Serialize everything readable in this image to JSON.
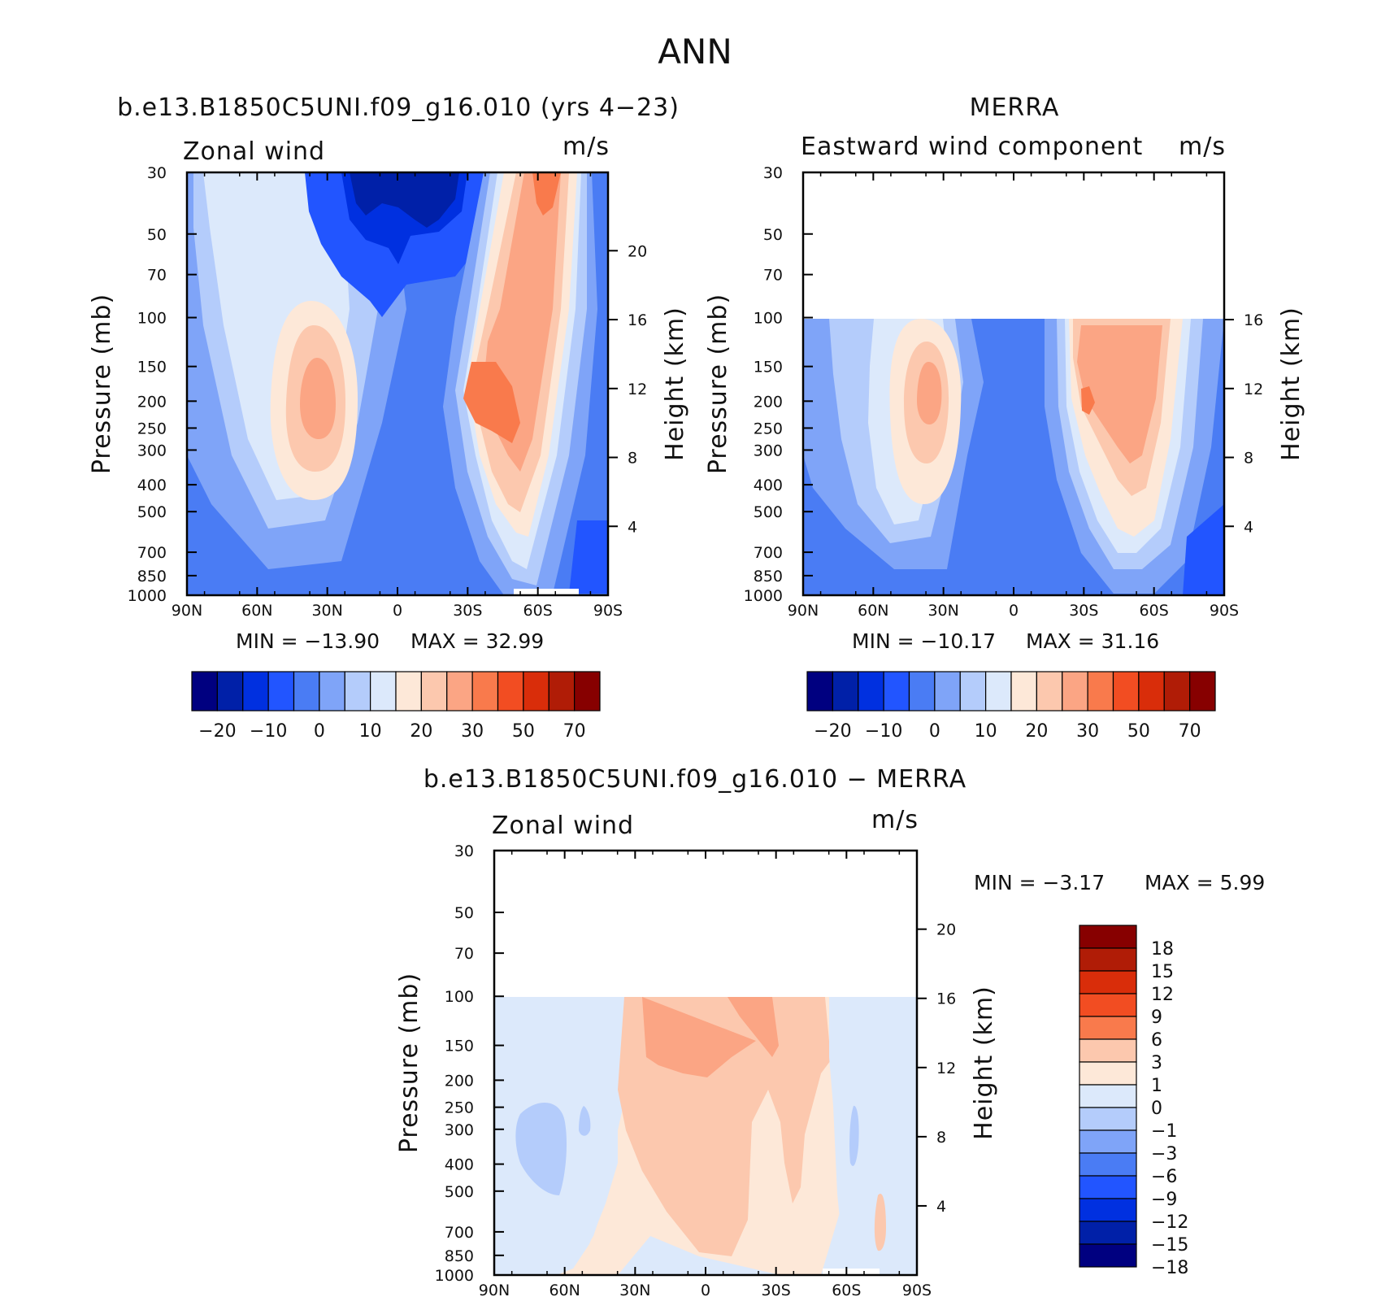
{
  "title": "ANN",
  "chart_data": [
    {
      "type": "contour",
      "id": "model",
      "title": "b.e13.B1850C5UNI.f09_g16.010 (yrs 4−23)",
      "left_label": "Zonal wind",
      "units": "m/s",
      "xlabel": "",
      "ylabel": "Pressure (mb)",
      "ylabel_right": "Height (km)",
      "x_ticks": [
        "90N",
        "60N",
        "30N",
        "0",
        "30S",
        "60S",
        "90S"
      ],
      "pressure_ticks": [
        30,
        50,
        70,
        100,
        150,
        200,
        250,
        300,
        400,
        500,
        700,
        850,
        1000
      ],
      "height_ticks": [
        4,
        8,
        12,
        16,
        20
      ],
      "data_top_mb": 30,
      "min_label": "MIN = −13.90",
      "max_label": "MAX = 32.99",
      "levels": [
        -25,
        -20,
        -15,
        -10,
        -5,
        0,
        5,
        10,
        15,
        20,
        25,
        30,
        40,
        50,
        60,
        70
      ],
      "colorbar_labels": [
        "−20",
        "−10",
        "0",
        "10",
        "20",
        "30",
        "50",
        "70"
      ]
    },
    {
      "type": "contour",
      "id": "obs",
      "title": "MERRA",
      "left_label": "Eastward wind component",
      "units": "m/s",
      "xlabel": "",
      "ylabel": "Pressure (mb)",
      "ylabel_right": "Height (km)",
      "x_ticks": [
        "90N",
        "60N",
        "30N",
        "0",
        "30S",
        "60S",
        "90S"
      ],
      "pressure_ticks": [
        30,
        50,
        70,
        100,
        150,
        200,
        250,
        300,
        400,
        500,
        700,
        850,
        1000
      ],
      "height_ticks": [
        4,
        8,
        12,
        16
      ],
      "data_top_mb": 100,
      "min_label": "MIN = −10.17",
      "max_label": "MAX = 31.16",
      "levels": [
        -25,
        -20,
        -15,
        -10,
        -5,
        0,
        5,
        10,
        15,
        20,
        25,
        30,
        40,
        50,
        60,
        70
      ],
      "colorbar_labels": [
        "−20",
        "−10",
        "0",
        "10",
        "20",
        "30",
        "50",
        "70"
      ]
    },
    {
      "type": "contour",
      "id": "diff",
      "title": "b.e13.B1850C5UNI.f09_g16.010 − MERRA",
      "left_label": "Zonal wind",
      "units": "m/s",
      "xlabel": "",
      "ylabel": "Pressure (mb)",
      "ylabel_right": "Height (km)",
      "x_ticks": [
        "90N",
        "60N",
        "30N",
        "0",
        "30S",
        "60S",
        "90S"
      ],
      "pressure_ticks": [
        30,
        50,
        70,
        100,
        150,
        200,
        250,
        300,
        400,
        500,
        700,
        850,
        1000
      ],
      "height_ticks": [
        4,
        8,
        12,
        16,
        20
      ],
      "data_top_mb": 100,
      "min_label": "MIN = −3.17",
      "max_label": "MAX = 5.99",
      "levels": [
        -18,
        -15,
        -12,
        -9,
        -6,
        -3,
        -1,
        0,
        1,
        3,
        6,
        9,
        12,
        15,
        18
      ],
      "colorbar_labels": [
        "18",
        "15",
        "12",
        "9",
        "6",
        "3",
        "1",
        "0",
        "−1",
        "−3",
        "−6",
        "−9",
        "−12",
        "−15",
        "−18"
      ]
    }
  ],
  "colors": {
    "blues": [
      "#000080",
      "#0020a8",
      "#0030e0",
      "#2255ff",
      "#4a7cf4",
      "#7fa4f8",
      "#b4ccfb",
      "#dce9fb"
    ],
    "reds": [
      "#fde8d8",
      "#fcc8ae",
      "#fba584",
      "#f97a4c",
      "#f24d22",
      "#d92d0a",
      "#b01c06",
      "#870000"
    ],
    "diff_colors": [
      "#870000",
      "#b01c06",
      "#d92d0a",
      "#f24d22",
      "#f97a4c",
      "#fcc8ae",
      "#fde8d8",
      "#dce9fb",
      "#b4ccfb",
      "#7fa4f8",
      "#4a7cf4",
      "#2255ff",
      "#0030e0",
      "#0020a8",
      "#000080"
    ]
  }
}
